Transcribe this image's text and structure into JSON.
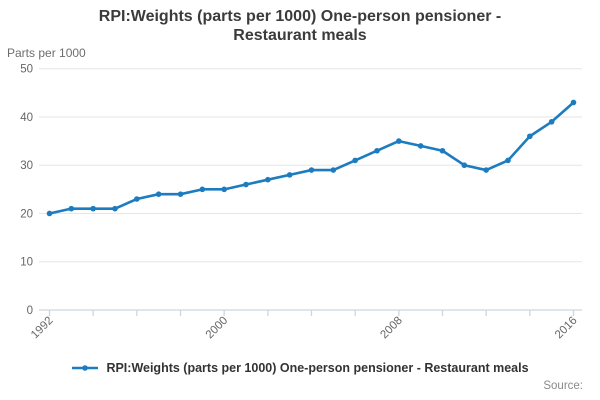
{
  "title": {
    "line1": "RPI:Weights (parts per 1000) One-person pensioner -",
    "line2": "Restaurant meals"
  },
  "unit_label": "Parts per 1000",
  "source_label": "Source:",
  "legend": {
    "label": "RPI:Weights (parts per 1000) One-person pensioner - Restaurant meals"
  },
  "chart_data": {
    "type": "line",
    "title": "RPI:Weights (parts per 1000) One-person pensioner - Restaurant meals",
    "ylabel": "Parts per 1000",
    "x": [
      1992,
      1993,
      1994,
      1995,
      1996,
      1997,
      1998,
      1999,
      2000,
      2001,
      2002,
      2003,
      2004,
      2005,
      2006,
      2007,
      2008,
      2009,
      2010,
      2011,
      2012,
      2013,
      2014,
      2015,
      2016
    ],
    "series": [
      {
        "name": "RPI:Weights (parts per 1000) One-person pensioner - Restaurant meals",
        "values": [
          20,
          21,
          21,
          21,
          23,
          24,
          24,
          25,
          25,
          26,
          27,
          28,
          29,
          29,
          31,
          33,
          35,
          34,
          33,
          30,
          29,
          31,
          36,
          39,
          43
        ]
      }
    ],
    "ylim": [
      0,
      50
    ],
    "yticks": [
      0,
      10,
      20,
      30,
      40,
      50
    ],
    "xticks_minor": [
      1992,
      1994,
      1996,
      1998,
      2000,
      2002,
      2004,
      2006,
      2008,
      2010,
      2012,
      2014,
      2016
    ],
    "xticks_labeled": [
      1992,
      2000,
      2008,
      2016
    ],
    "grid": "horizontal",
    "legend_position": "bottom",
    "line_color": "#1d7cbf",
    "grid_color": "#e6e6e6",
    "axis_color": "#ccd6df",
    "tick_label_color": "#666666"
  }
}
